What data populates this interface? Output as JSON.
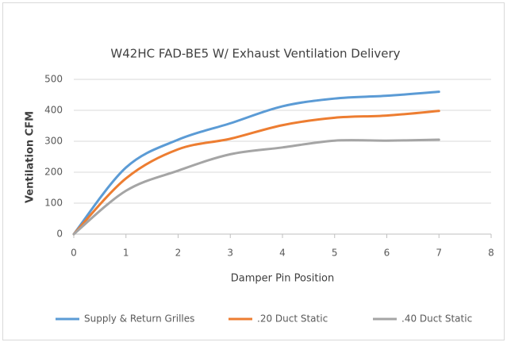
{
  "chart_data": {
    "type": "line",
    "title": "W42HC FAD-BE5 W/ Exhaust Ventilation Delivery",
    "x_label": "Damper Pin Position",
    "y_label": "Ventilation CFM",
    "x": [
      0,
      1,
      2,
      3,
      4,
      5,
      6,
      7
    ],
    "series": [
      {
        "name": "Supply & Return Grilles",
        "color": "#5b9bd5",
        "values": [
          0,
          215,
          305,
          358,
          413,
          438,
          447,
          460
        ]
      },
      {
        "name": ".20 Duct Static",
        "color": "#ed7d31",
        "values": [
          0,
          180,
          274,
          308,
          352,
          376,
          383,
          398
        ]
      },
      {
        "name": ".40 Duct Static",
        "color": "#a5a5a5",
        "values": [
          0,
          140,
          205,
          258,
          280,
          302,
          302,
          305
        ]
      }
    ],
    "xlim": [
      0,
      8
    ],
    "xticks": [
      0,
      1,
      2,
      3,
      4,
      5,
      6,
      7,
      8
    ],
    "ylim": [
      0,
      500
    ],
    "yticks": [
      0,
      100,
      200,
      300,
      400,
      500
    ],
    "grid": true,
    "legend": "bottom"
  }
}
